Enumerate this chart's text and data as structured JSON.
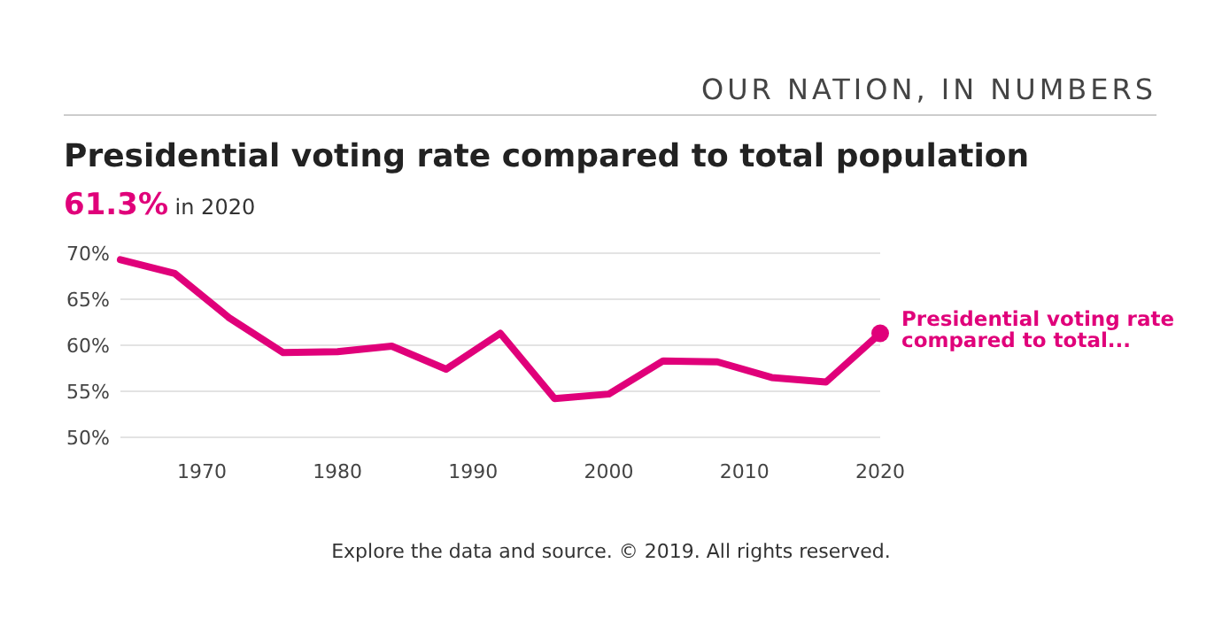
{
  "chart_data": {
    "type": "line",
    "title": "Presidential voting rate compared to total population",
    "subtitle": "61.3% in 2020",
    "x": [
      1964,
      1968,
      1972,
      1976,
      1980,
      1984,
      1988,
      1992,
      1996,
      2000,
      2004,
      2008,
      2012,
      2016,
      2020
    ],
    "series": [
      {
        "color": "#e0007a",
        "values": [
          69.3,
          67.8,
          63.0,
          59.2,
          59.3,
          59.9,
          57.4,
          61.3,
          54.2,
          54.7,
          58.3,
          58.2,
          56.5,
          56.0,
          61.3
        ]
      }
    ],
    "xlim": [
      1964,
      2020
    ],
    "xticks": [
      1970,
      1980,
      1990,
      2000,
      2010,
      2020
    ],
    "ylim": [
      50,
      70
    ],
    "yticks": [
      {
        "value": 50,
        "label": "50%"
      },
      {
        "value": 55,
        "label": "55%"
      },
      {
        "value": 60,
        "label": "60%"
      },
      {
        "value": 65,
        "label": "65%"
      },
      {
        "value": 70,
        "label": "70%"
      }
    ],
    "grid": "y",
    "marker": "none",
    "line_style": "solid",
    "annotations": [
      "OUR NATION, IN NUMBERS",
      {
        "text": "Presidential voting rate compared to total...",
        "x": 2020,
        "y": 61.3
      },
      "Explore the data and source. © 2019. All rights reserved."
    ]
  }
}
